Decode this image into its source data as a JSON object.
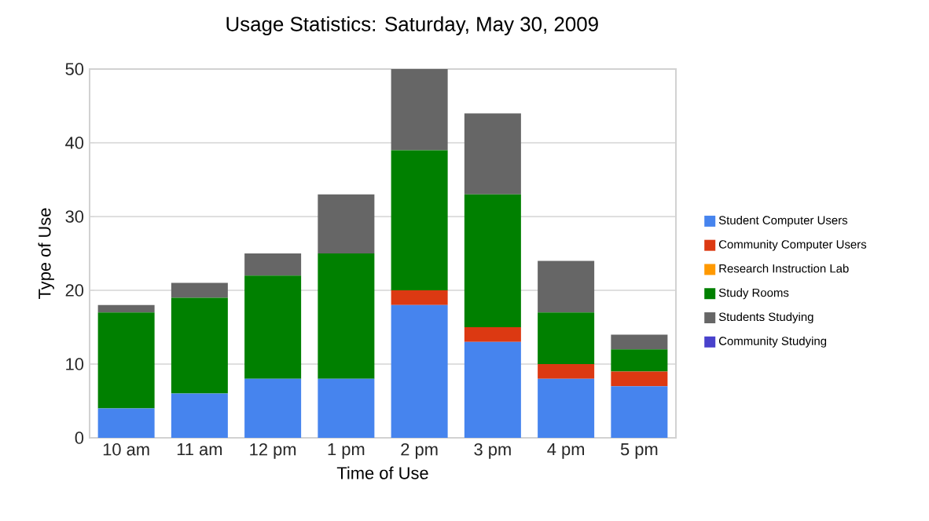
{
  "chart_data": {
    "type": "bar",
    "stacked": true,
    "title": "Usage Statistics: Saturday, May 30, 2009",
    "xlabel": "Time of Use",
    "ylabel": "Type of Use",
    "categories": [
      "10 am",
      "11 am",
      "12 pm",
      "1 pm",
      "2 pm",
      "3 pm",
      "4 pm",
      "5 pm"
    ],
    "series": [
      {
        "name": "Student Computer Users",
        "color": "#4684ee",
        "values": [
          4,
          6,
          8,
          8,
          18,
          13,
          8,
          7
        ]
      },
      {
        "name": "Community Computer Users",
        "color": "#dc3912",
        "values": [
          0,
          0,
          0,
          0,
          2,
          2,
          2,
          2
        ]
      },
      {
        "name": "Research Instruction Lab",
        "color": "#ff9900",
        "values": [
          0,
          0,
          0,
          0,
          0,
          0,
          0,
          0
        ]
      },
      {
        "name": "Study Rooms",
        "color": "#008000",
        "values": [
          13,
          13,
          14,
          17,
          19,
          18,
          7,
          3
        ]
      },
      {
        "name": "Students Studying",
        "color": "#666666",
        "values": [
          1,
          2,
          3,
          8,
          11,
          11,
          7,
          2
        ]
      },
      {
        "name": "Community Studying",
        "color": "#4942cc",
        "values": [
          0,
          0,
          0,
          0,
          0,
          0,
          0,
          0
        ]
      }
    ],
    "ylim": [
      0,
      50
    ],
    "yticks": [
      0,
      10,
      20,
      30,
      40,
      50
    ],
    "grid": "y",
    "legend": "right"
  }
}
